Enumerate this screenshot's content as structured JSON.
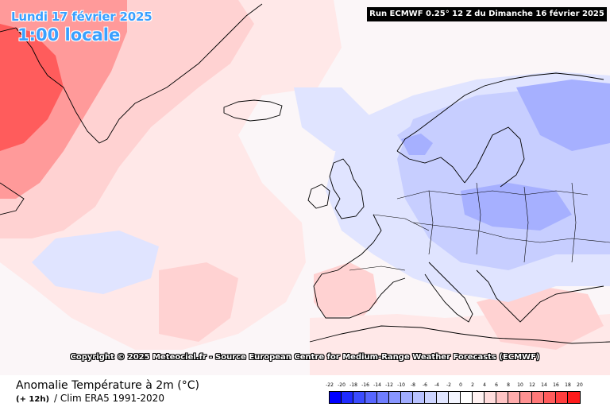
{
  "header": {
    "date": "Lundi 17 février 2025",
    "local_time": "1:00 locale",
    "run_info": "Run ECMWF 0.25° 12 Z du Dimanche 16 février 2025"
  },
  "credits": "Copyright © 2025 Meteociel.fr - Source European Centre for Medium-Range Weather Forecasts (ECMWF)",
  "footer": {
    "title": "Anomalie Température à 2m (°C)",
    "lead_time": "(+ 12h)",
    "climatology": "/ Clim ERA5 1991-2020"
  },
  "legend": {
    "ticks": [
      "-22",
      "-20",
      "-18",
      "-16",
      "-14",
      "-12",
      "-10",
      "-8",
      "-6",
      "-4",
      "-2",
      "0",
      "2",
      "4",
      "6",
      "8",
      "10",
      "12",
      "14",
      "16",
      "18",
      "20"
    ],
    "colors": [
      "#0000ff",
      "#1f2bff",
      "#3b4cff",
      "#5766ff",
      "#6f7eff",
      "#8896ff",
      "#a0acff",
      "#b7c1ff",
      "#ccd4ff",
      "#e0e5ff",
      "#f3f5ff",
      "#ffffff",
      "#fff1f1",
      "#ffdcdc",
      "#ffc4c4",
      "#ffacac",
      "#ff9292",
      "#ff7878",
      "#ff5c5c",
      "#ff3e3e",
      "#ff1c1c"
    ]
  },
  "map": {
    "colors": {
      "warm_strong": "#ff5c5c",
      "warm_mid": "#ff9a9a",
      "warm_light": "#ffd2d2",
      "warm_faint": "#ffe8e8",
      "cold_light": "#e0e4ff",
      "cold_mid": "#c7ceff",
      "cold_strong": "#a6b0ff",
      "coast": "#000000"
    }
  }
}
